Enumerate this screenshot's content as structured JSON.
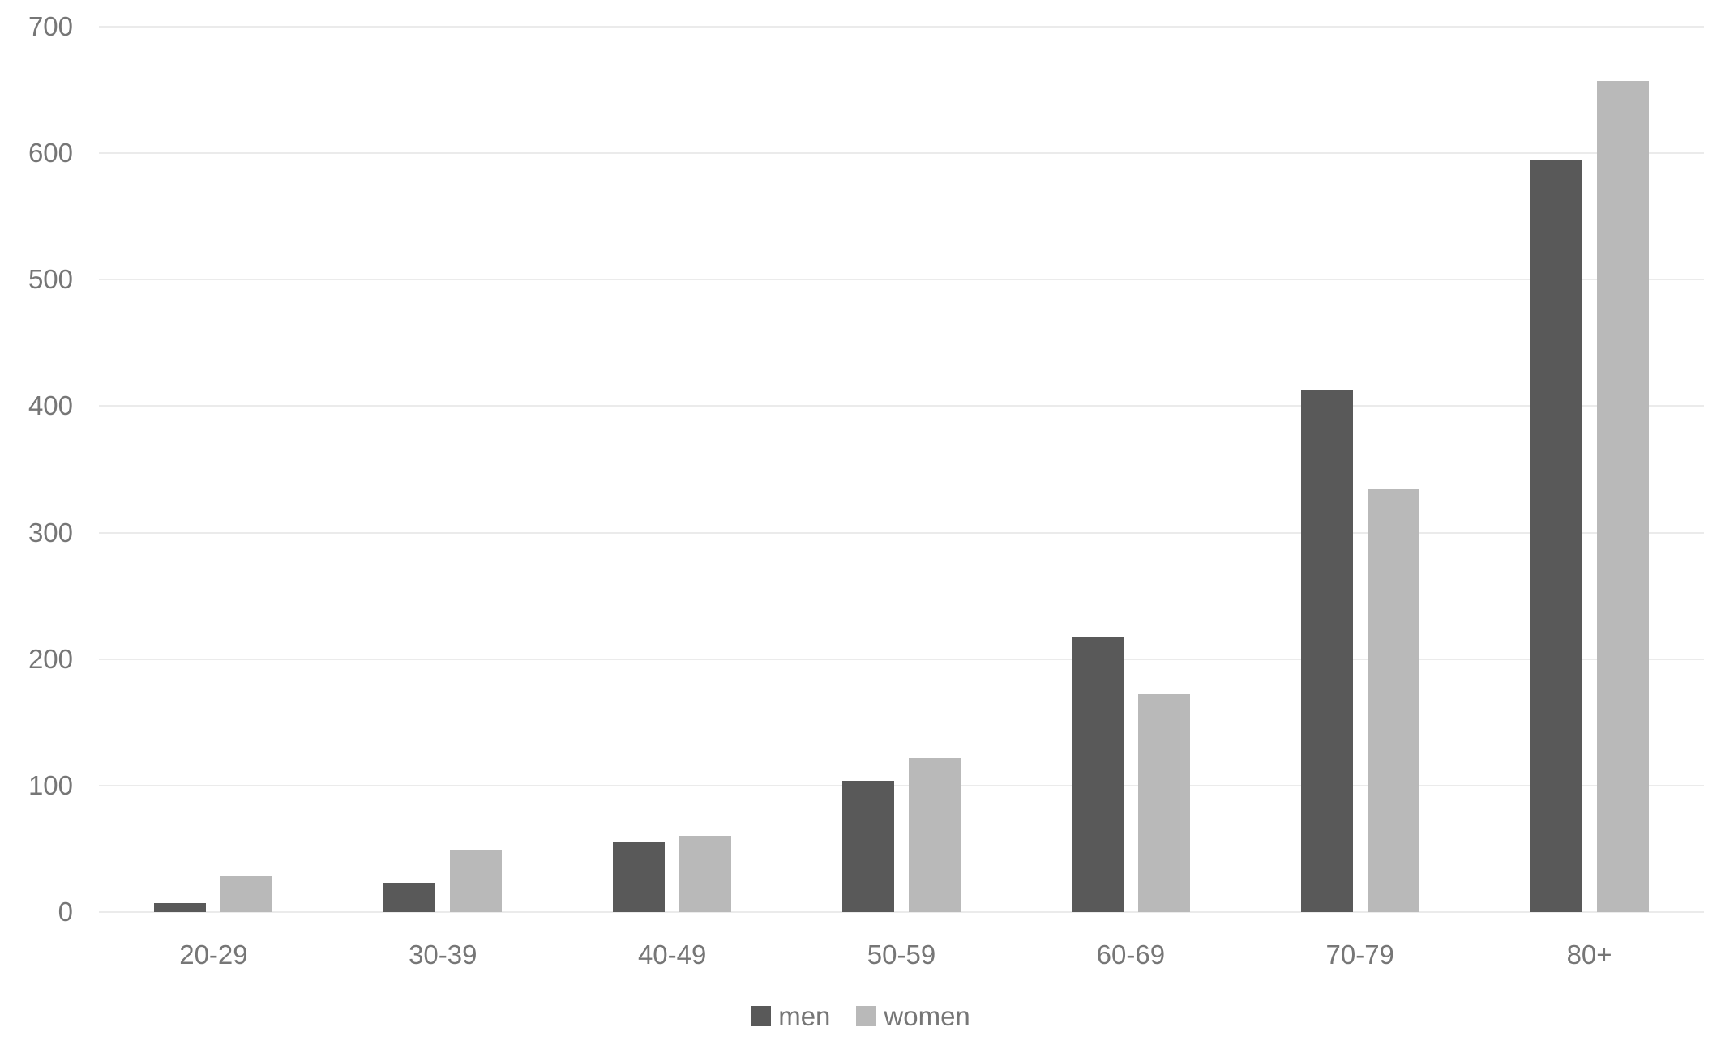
{
  "chart_data": {
    "type": "bar",
    "title": "",
    "xlabel": "",
    "ylabel": "",
    "categories": [
      "20-29",
      "30-39",
      "40-49",
      "50-59",
      "60-69",
      "70-79",
      "80+"
    ],
    "series": [
      {
        "name": "men",
        "color": "#595959",
        "values": [
          7,
          23,
          55,
          104,
          217,
          413,
          595
        ]
      },
      {
        "name": "women",
        "color": "#b9b9b9",
        "values": [
          28,
          49,
          60,
          122,
          172,
          334,
          657
        ]
      }
    ],
    "ylim": [
      0,
      700
    ],
    "yticks": [
      0,
      100,
      200,
      300,
      400,
      500,
      600,
      700
    ],
    "grid": true,
    "legend_position": "bottom",
    "colors": {
      "axis_text": "#767676",
      "gridline": "#ebebeb",
      "background": "#ffffff"
    }
  }
}
